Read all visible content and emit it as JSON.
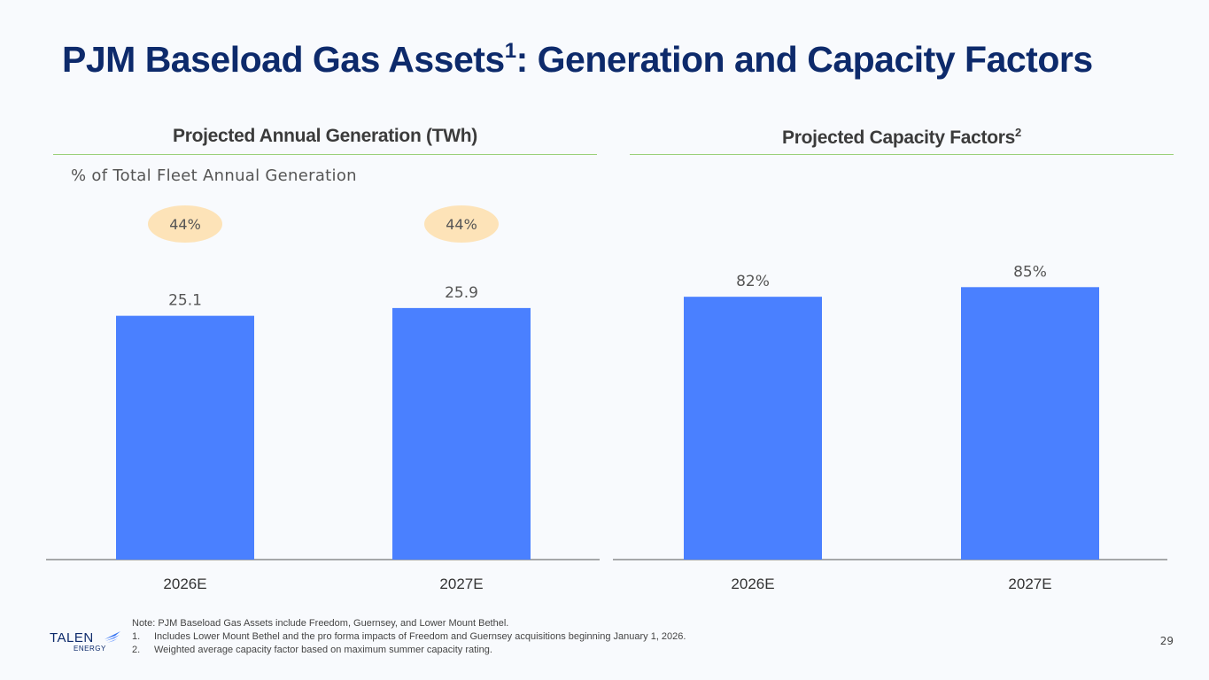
{
  "page": {
    "title": "PJM Baseload Gas Assets",
    "title_sup": "1",
    "title_rest": ": Generation and Capacity Factors",
    "page_number": "29"
  },
  "left_panel": {
    "heading": "Projected Annual Generation (TWh)",
    "subtitle": "% of Total Fleet Annual Generation"
  },
  "right_panel": {
    "heading": "Projected Capacity Factors",
    "heading_sup": "2"
  },
  "chart_data": [
    {
      "type": "bar",
      "title": "Projected Annual Generation (TWh)",
      "categories": [
        "2026E",
        "2027E"
      ],
      "values": [
        25.1,
        25.9
      ],
      "value_labels": [
        "25.1",
        "25.9"
      ],
      "share_labels": [
        "44%",
        "44%"
      ],
      "share_caption": "% of Total Fleet Annual Generation",
      "ylim": [
        0,
        33
      ],
      "color": "#4a80ff"
    },
    {
      "type": "bar",
      "title": "Projected Capacity Factors",
      "categories": [
        "2026E",
        "2027E"
      ],
      "values": [
        82,
        85
      ],
      "value_labels": [
        "82%",
        "85%"
      ],
      "ylim": [
        0,
        100
      ],
      "color": "#4a80ff"
    }
  ],
  "footnotes": {
    "note": "Note: PJM Baseload Gas Assets include Freedom, Guernsey, and Lower Mount Bethel.",
    "items": [
      {
        "num": "1.",
        "text": "Includes Lower Mount Bethel and the pro forma impacts of Freedom and Guernsey acquisitions beginning January 1, 2026."
      },
      {
        "num": "2.",
        "text": "Weighted average capacity factor based on maximum summer capacity rating."
      }
    ]
  },
  "logo": {
    "name": "TALEN",
    "sub": "ENERGY"
  },
  "colors": {
    "title": "#0d2a6b",
    "bar": "#4a80ff",
    "badge": "#fde3b8",
    "rule": "#9ad07a"
  }
}
